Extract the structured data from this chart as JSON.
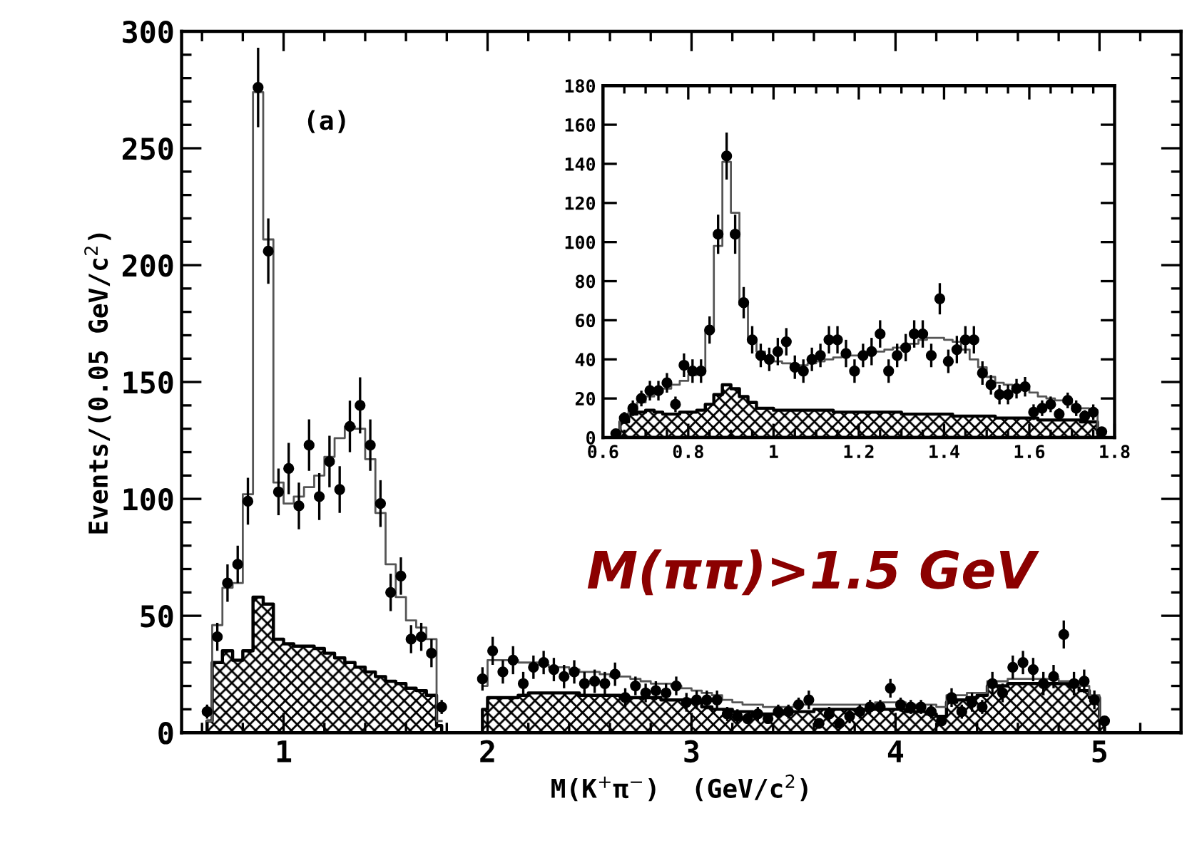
{
  "chart_data": [
    {
      "type": "scatter",
      "xlabel": "M(K$^{+}$π$^{−}$)  (GeV/c$^{2}$)",
      "ylabel": "Events/(0.05 GeV/c$^{2}$)",
      "xlim": [
        0.5,
        5.4
      ],
      "ylim": [
        0,
        300
      ],
      "xticks": [
        {
          "value": 0.6,
          "label": null
        },
        {
          "value": 0.8,
          "label": null
        },
        1,
        {
          "value": 1.2,
          "label": null
        },
        {
          "value": 1.4,
          "label": null
        },
        {
          "value": 1.6,
          "label": null
        },
        {
          "value": 1.8,
          "label": null
        },
        2,
        {
          "value": 2.2,
          "label": null
        },
        {
          "value": 2.4,
          "label": null
        },
        {
          "value": 2.6,
          "label": null
        },
        {
          "value": 2.8,
          "label": null
        },
        3,
        {
          "value": 3.2,
          "label": null
        },
        {
          "value": 3.4,
          "label": null
        },
        {
          "value": 3.6,
          "label": null
        },
        {
          "value": 3.8,
          "label": null
        },
        4,
        {
          "value": 4.2,
          "label": null
        },
        {
          "value": 4.4,
          "label": null
        },
        {
          "value": 4.6,
          "label": null
        },
        {
          "value": 4.8,
          "label": null
        },
        5,
        {
          "value": 5.2,
          "label": null
        }
      ],
      "yticks": [
        0,
        {
          "value": 10,
          "label": null
        },
        {
          "value": 20,
          "label": null
        },
        {
          "value": 30,
          "label": null
        },
        {
          "value": 40,
          "label": null
        },
        50,
        {
          "value": 60,
          "label": null
        },
        {
          "value": 70,
          "label": null
        },
        {
          "value": 80,
          "label": null
        },
        {
          "value": 90,
          "label": null
        },
        100,
        {
          "value": 110,
          "label": null
        },
        {
          "value": 120,
          "label": null
        },
        {
          "value": 130,
          "label": null
        },
        {
          "value": 140,
          "label": null
        },
        150,
        {
          "value": 160,
          "label": null
        },
        {
          "value": 170,
          "label": null
        },
        {
          "value": 180,
          "label": null
        },
        {
          "value": 190,
          "label": null
        },
        200,
        {
          "value": 210,
          "label": null
        },
        {
          "value": 220,
          "label": null
        },
        {
          "value": 230,
          "label": null
        },
        {
          "value": 240,
          "label": null
        },
        250,
        {
          "value": 260,
          "label": null
        },
        {
          "value": 270,
          "label": null
        },
        {
          "value": 280,
          "label": null
        },
        {
          "value": 290,
          "label": null
        },
        300
      ],
      "annotations": [
        "(a)",
        "M(ππ)>1.5 GeV"
      ],
      "series": [
        {
          "type": "area",
          "color": "#000000",
          "x": [
            0.625,
            0.675,
            0.725,
            0.775,
            0.825,
            0.875,
            0.925,
            0.975,
            1.025,
            1.075,
            1.125,
            1.175,
            1.225,
            1.275,
            1.325,
            1.375,
            1.425,
            1.475,
            1.525,
            1.575,
            1.625,
            1.675,
            1.725,
            1.775
          ],
          "values": [
            5,
            30,
            35,
            31,
            35,
            58,
            55,
            40,
            38,
            37,
            37,
            36,
            34,
            32,
            30,
            28,
            26,
            24,
            22,
            21,
            19,
            18,
            16,
            3
          ]
        },
        {
          "type": "area",
          "color": "#000000",
          "x": [
            1.975,
            2.025,
            2.075,
            2.125,
            2.175,
            2.225,
            2.275,
            2.325,
            2.375,
            2.425,
            2.475,
            2.525,
            2.575,
            2.625,
            2.675,
            2.725,
            2.775,
            2.825,
            2.875,
            2.925,
            2.975,
            3.025,
            3.075,
            3.125,
            3.175,
            3.225,
            3.275,
            3.325,
            3.375,
            3.425,
            3.475,
            3.525,
            3.575,
            3.625,
            3.675,
            3.725,
            3.775,
            3.825,
            3.875,
            3.925,
            3.975,
            4.025,
            4.075,
            4.125,
            4.175,
            4.225,
            4.275,
            4.325,
            4.375,
            4.425,
            4.475,
            4.525,
            4.575,
            4.625,
            4.675,
            4.725,
            4.775,
            4.825,
            4.875,
            4.925,
            4.975,
            5.025
          ],
          "values": [
            10,
            15,
            15,
            15,
            16,
            17,
            17,
            17,
            17,
            17,
            16,
            16,
            16,
            16,
            15,
            15,
            15,
            15,
            14,
            14,
            14,
            13,
            11,
            10,
            10,
            9,
            9,
            8,
            8,
            8,
            9,
            9,
            9,
            10,
            10,
            10,
            10,
            10,
            10,
            10,
            10,
            10,
            9,
            9,
            8,
            7,
            13,
            14,
            15,
            16,
            20,
            20,
            21,
            21,
            21,
            21,
            21,
            21,
            20,
            18,
            15,
            5
          ]
        },
        {
          "type": "step",
          "color": "#555555",
          "x": [
            0.625,
            0.675,
            0.725,
            0.775,
            0.825,
            0.875,
            0.925,
            0.975,
            1.025,
            1.075,
            1.125,
            1.175,
            1.225,
            1.275,
            1.325,
            1.375,
            1.425,
            1.475,
            1.525,
            1.575,
            1.625,
            1.675,
            1.725,
            1.775
          ],
          "values": [
            5,
            46,
            62,
            64,
            102,
            274,
            211,
            107,
            98,
            101,
            105,
            110,
            118,
            126,
            131,
            130,
            117,
            94,
            72,
            58,
            48,
            45,
            40,
            5
          ]
        },
        {
          "type": "step",
          "color": "#555555",
          "x": [
            1.975,
            2.025,
            2.075,
            2.125,
            2.175,
            2.225,
            2.275,
            2.325,
            2.375,
            2.425,
            2.475,
            2.525,
            2.575,
            2.625,
            2.675,
            2.725,
            2.775,
            2.825,
            2.875,
            2.925,
            2.975,
            3.025,
            3.075,
            3.125,
            3.175,
            3.225,
            3.275,
            3.325,
            3.375,
            3.425,
            3.475,
            3.525,
            3.575,
            3.625,
            3.675,
            3.725,
            3.775,
            3.825,
            3.875,
            3.925,
            3.975,
            4.025,
            4.075,
            4.125,
            4.175,
            4.225,
            4.275,
            4.325,
            4.375,
            4.425,
            4.475,
            4.525,
            4.575,
            4.625,
            4.675,
            4.725,
            4.775,
            4.825,
            4.875,
            4.925,
            4.975,
            5.025
          ],
          "values": [
            20,
            31,
            31,
            31,
            30,
            30,
            29,
            28,
            28,
            27,
            26,
            26,
            25,
            24,
            24,
            23,
            22,
            21,
            21,
            20,
            19,
            18,
            17,
            16,
            14,
            13,
            12,
            12,
            11,
            11,
            11,
            12,
            12,
            12,
            12,
            12,
            12,
            12,
            12,
            13,
            13,
            13,
            12,
            12,
            12,
            11,
            16,
            16,
            17,
            17,
            22,
            22,
            23,
            23,
            23,
            23,
            23,
            22,
            22,
            20,
            16,
            6
          ]
        },
        {
          "marker": "circle",
          "color": "#000000",
          "x": [
            0.625,
            0.675,
            0.725,
            0.775,
            0.825,
            0.875,
            0.925,
            0.975,
            1.025,
            1.075,
            1.125,
            1.175,
            1.225,
            1.275,
            1.325,
            1.375,
            1.425,
            1.475,
            1.525,
            1.575,
            1.625,
            1.675,
            1.725,
            1.775
          ],
          "values": [
            9,
            41,
            64,
            72,
            99,
            276,
            206,
            103,
            113,
            97,
            123,
            101,
            116,
            104,
            131,
            140,
            123,
            98,
            60,
            67,
            40,
            41,
            34,
            11
          ],
          "errors": [
            3,
            6,
            8,
            8,
            10,
            17,
            14,
            10,
            11,
            10,
            11,
            10,
            11,
            10,
            11,
            12,
            11,
            10,
            8,
            8,
            6,
            6,
            6,
            3
          ]
        },
        {
          "marker": "circle",
          "color": "#000000",
          "x": [
            1.975,
            2.025,
            2.075,
            2.125,
            2.175,
            2.225,
            2.275,
            2.325,
            2.375,
            2.425,
            2.475,
            2.525,
            2.575,
            2.625,
            2.675,
            2.725,
            2.775,
            2.825,
            2.875,
            2.925,
            2.975,
            3.025,
            3.075,
            3.125,
            3.175,
            3.225,
            3.275,
            3.325,
            3.375,
            3.425,
            3.475,
            3.525,
            3.575,
            3.625,
            3.675,
            3.725,
            3.775,
            3.825,
            3.875,
            3.925,
            3.975,
            4.025,
            4.075,
            4.125,
            4.175,
            4.225,
            4.275,
            4.325,
            4.375,
            4.425,
            4.475,
            4.525,
            4.575,
            4.625,
            4.675,
            4.725,
            4.775,
            4.825,
            4.875,
            4.925,
            4.975,
            5.025
          ],
          "values": [
            23,
            35,
            26,
            31,
            21,
            28,
            30,
            27,
            24,
            26,
            21,
            22,
            21,
            25,
            15,
            20,
            17,
            18,
            17,
            20,
            13,
            14,
            14,
            14,
            8,
            7,
            6,
            8,
            6,
            9,
            9,
            12,
            14,
            4,
            8,
            4,
            7,
            9,
            11,
            11,
            19,
            12,
            11,
            11,
            9,
            5,
            15,
            9,
            13,
            11,
            21,
            17,
            28,
            30,
            27,
            21,
            24,
            42,
            21,
            22,
            14,
            5
          ],
          "errors": [
            5,
            6,
            5,
            6,
            5,
            5,
            5,
            5,
            5,
            5,
            5,
            5,
            5,
            5,
            4,
            4,
            4,
            4,
            4,
            4,
            4,
            4,
            4,
            4,
            3,
            3,
            2,
            3,
            2,
            3,
            3,
            3,
            4,
            2,
            3,
            2,
            3,
            3,
            3,
            3,
            4,
            3,
            3,
            3,
            3,
            2,
            4,
            3,
            4,
            3,
            5,
            4,
            5,
            5,
            5,
            5,
            5,
            6,
            5,
            5,
            4,
            2
          ]
        }
      ]
    },
    {
      "type": "scatter",
      "xlim": [
        0.6,
        1.8
      ],
      "ylim": [
        0,
        180
      ],
      "xticks": [
        0.6,
        {
          "value": 0.65,
          "label": null
        },
        {
          "value": 0.7,
          "label": null
        },
        {
          "value": 0.75,
          "label": null
        },
        0.8,
        {
          "value": 0.85,
          "label": null
        },
        {
          "value": 0.9,
          "label": null
        },
        {
          "value": 0.95,
          "label": null
        },
        1,
        {
          "value": 1.05,
          "label": null
        },
        {
          "value": 1.1,
          "label": null
        },
        {
          "value": 1.15,
          "label": null
        },
        1.2,
        {
          "value": 1.25,
          "label": null
        },
        {
          "value": 1.3,
          "label": null
        },
        {
          "value": 1.35,
          "label": null
        },
        1.4,
        {
          "value": 1.45,
          "label": null
        },
        {
          "value": 1.5,
          "label": null
        },
        {
          "value": 1.55,
          "label": null
        },
        1.6,
        {
          "value": 1.65,
          "label": null
        },
        {
          "value": 1.7,
          "label": null
        },
        {
          "value": 1.75,
          "label": null
        },
        1.8
      ],
      "yticks": [
        0,
        20,
        40,
        60,
        80,
        100,
        120,
        140,
        160,
        180
      ],
      "series": [
        {
          "type": "area",
          "color": "#000000",
          "x": [
            0.63,
            0.65,
            0.67,
            0.69,
            0.71,
            0.73,
            0.75,
            0.77,
            0.79,
            0.81,
            0.83,
            0.85,
            0.87,
            0.89,
            0.91,
            0.93,
            0.95,
            0.97,
            0.99,
            1.01,
            1.03,
            1.05,
            1.07,
            1.09,
            1.11,
            1.13,
            1.15,
            1.17,
            1.19,
            1.21,
            1.23,
            1.25,
            1.27,
            1.29,
            1.31,
            1.33,
            1.35,
            1.37,
            1.39,
            1.41,
            1.43,
            1.45,
            1.47,
            1.49,
            1.51,
            1.53,
            1.55,
            1.57,
            1.59,
            1.61,
            1.63,
            1.65,
            1.67,
            1.69,
            1.71,
            1.73,
            1.75,
            1.77
          ],
          "values": [
            2,
            8,
            12,
            13,
            14,
            13,
            12,
            12,
            13,
            13,
            14,
            17,
            22,
            27,
            25,
            21,
            18,
            15,
            15,
            14,
            14,
            14,
            14,
            14,
            14,
            14,
            13,
            13,
            13,
            13,
            13,
            13,
            13,
            13,
            12,
            12,
            12,
            12,
            12,
            12,
            11,
            11,
            11,
            11,
            11,
            10,
            10,
            10,
            10,
            10,
            9,
            9,
            9,
            9,
            9,
            8,
            8,
            2
          ]
        },
        {
          "type": "step",
          "color": "#555555",
          "x": [
            0.63,
            0.65,
            0.67,
            0.69,
            0.71,
            0.73,
            0.75,
            0.77,
            0.79,
            0.81,
            0.83,
            0.85,
            0.87,
            0.89,
            0.91,
            0.93,
            0.95,
            0.97,
            0.99,
            1.01,
            1.03,
            1.05,
            1.07,
            1.09,
            1.11,
            1.13,
            1.15,
            1.17,
            1.19,
            1.21,
            1.23,
            1.25,
            1.27,
            1.29,
            1.31,
            1.33,
            1.35,
            1.37,
            1.39,
            1.41,
            1.43,
            1.45,
            1.47,
            1.49,
            1.51,
            1.53,
            1.55,
            1.57,
            1.59,
            1.61,
            1.63,
            1.65,
            1.67,
            1.69,
            1.71,
            1.73,
            1.75,
            1.77
          ],
          "values": [
            3,
            10,
            14,
            18,
            21,
            23,
            25,
            27,
            29,
            32,
            35,
            55,
            98,
            141,
            115,
            68,
            50,
            44,
            41,
            39,
            38,
            37,
            37,
            38,
            39,
            40,
            41,
            42,
            42,
            42,
            43,
            44,
            45,
            46,
            47,
            48,
            50,
            51,
            51,
            50,
            49,
            45,
            40,
            36,
            31,
            28,
            27,
            26,
            25,
            23,
            21,
            20,
            19,
            18,
            16,
            15,
            14,
            3
          ]
        },
        {
          "marker": "circle",
          "color": "#000000",
          "x": [
            0.63,
            0.65,
            0.67,
            0.69,
            0.71,
            0.73,
            0.75,
            0.77,
            0.79,
            0.81,
            0.83,
            0.85,
            0.87,
            0.89,
            0.91,
            0.93,
            0.95,
            0.97,
            0.99,
            1.01,
            1.03,
            1.05,
            1.07,
            1.09,
            1.11,
            1.13,
            1.15,
            1.17,
            1.19,
            1.21,
            1.23,
            1.25,
            1.27,
            1.29,
            1.31,
            1.33,
            1.35,
            1.37,
            1.39,
            1.41,
            1.43,
            1.45,
            1.47,
            1.49,
            1.51,
            1.53,
            1.55,
            1.57,
            1.59,
            1.61,
            1.63,
            1.65,
            1.67,
            1.69,
            1.71,
            1.73,
            1.75,
            1.77
          ],
          "values": [
            2,
            10,
            15,
            20,
            24,
            24,
            28,
            17,
            37,
            34,
            34,
            55,
            104,
            144,
            104,
            69,
            50,
            42,
            40,
            44,
            49,
            36,
            34,
            40,
            42,
            50,
            50,
            43,
            34,
            42,
            44,
            53,
            34,
            42,
            46,
            53,
            53,
            42,
            71,
            39,
            45,
            50,
            50,
            33,
            27,
            22,
            22,
            25,
            26,
            13,
            15,
            17,
            12,
            19,
            15,
            11,
            13,
            3
          ],
          "errors": [
            1,
            3,
            4,
            4,
            5,
            5,
            5,
            4,
            6,
            6,
            6,
            7,
            10,
            12,
            10,
            8,
            7,
            6,
            6,
            7,
            7,
            6,
            6,
            6,
            6,
            7,
            7,
            7,
            6,
            6,
            7,
            7,
            6,
            6,
            7,
            7,
            7,
            6,
            8,
            6,
            7,
            7,
            7,
            6,
            5,
            5,
            5,
            5,
            5,
            4,
            4,
            4,
            3,
            4,
            4,
            3,
            4,
            2
          ]
        }
      ]
    }
  ]
}
